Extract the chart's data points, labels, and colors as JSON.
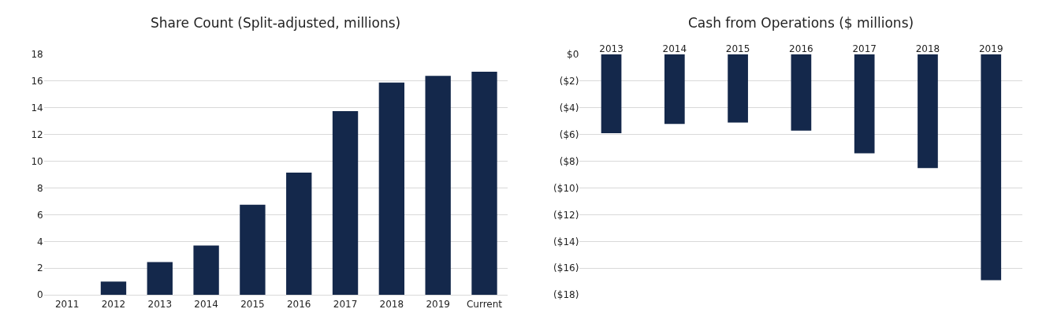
{
  "chart_data": [
    {
      "type": "bar",
      "title": "Share Count (Split-adjusted, millions)",
      "categories": [
        "2011",
        "2012",
        "2013",
        "2014",
        "2015",
        "2016",
        "2017",
        "2018",
        "2019",
        "Current"
      ],
      "values": [
        null,
        1.0,
        2.45,
        3.7,
        6.75,
        9.15,
        13.75,
        15.9,
        16.4,
        16.7
      ],
      "color": "#14284b",
      "ylim": [
        0,
        18
      ],
      "yticks": [
        0,
        2,
        4,
        6,
        8,
        10,
        12,
        14,
        16,
        18
      ],
      "grid": "y"
    },
    {
      "type": "bar",
      "title": "Cash from Operations ($ millions)",
      "categories": [
        "2013",
        "2014",
        "2015",
        "2016",
        "2017",
        "2018",
        "2019"
      ],
      "values": [
        -5.9,
        -5.2,
        -5.1,
        -5.7,
        -7.4,
        -8.5,
        -16.9
      ],
      "color": "#14284b",
      "ylim": [
        -18,
        0
      ],
      "yticks": [
        {
          "value": 0,
          "label": "$0"
        },
        {
          "value": -2,
          "label": "($2)"
        },
        {
          "value": -4,
          "label": "($4)"
        },
        {
          "value": -6,
          "label": "($6)"
        },
        {
          "value": -8,
          "label": "($8)"
        },
        {
          "value": -10,
          "label": "($10)"
        },
        {
          "value": -12,
          "label": "($12)"
        },
        {
          "value": -14,
          "label": "($14)"
        },
        {
          "value": -16,
          "label": "($16)"
        },
        {
          "value": -18,
          "label": "($18)"
        }
      ],
      "grid": "y"
    }
  ]
}
